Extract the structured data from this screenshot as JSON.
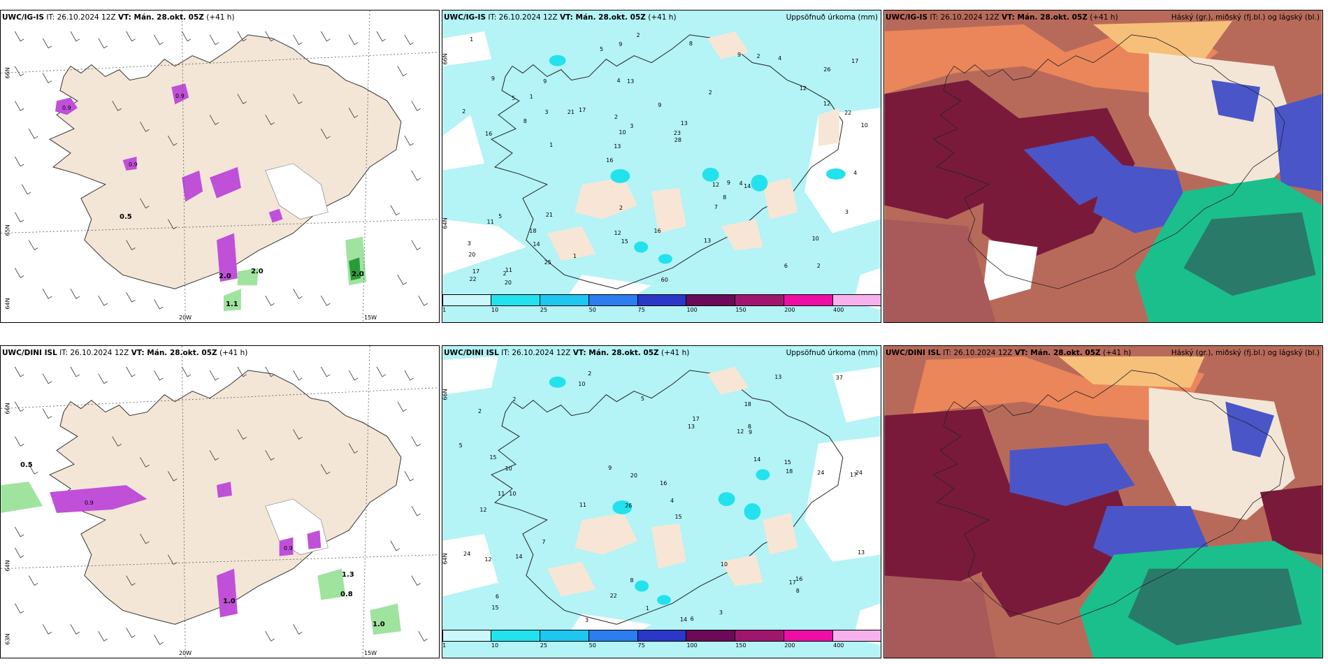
{
  "panels": [
    {
      "id": "tl",
      "model": "UWC/IG-IS",
      "it_text": "IT: 26.10.2024 12Z",
      "vt_text": "VT: Mán. 28.okt. 05Z",
      "lead": "(+41 h)",
      "right_title": "",
      "lon_labels": [
        "20W",
        "15W"
      ],
      "lat_labels": [
        "66N",
        "65N",
        "64N"
      ],
      "annotations": [
        "0.5",
        "1.1",
        "2.0",
        "2.0",
        "2.0",
        "0.9",
        "0.9",
        "0.9"
      ]
    },
    {
      "id": "tm",
      "model": "UWC/IG-IS",
      "it_text": "IT: 26.10.2024 12Z",
      "vt_text": "VT: Mán. 28.okt. 05Z",
      "lead": "(+41 h)",
      "right_title": "Uppsöfnuð úrkoma (mm)",
      "lat_labels": [
        "66N",
        "64N"
      ],
      "numbers": [
        "2",
        "16",
        "26",
        "16",
        "2",
        "11",
        "4",
        "9",
        "5",
        "17",
        "20",
        "14",
        "13",
        "13",
        "14",
        "9",
        "9",
        "10",
        "12",
        "12",
        "13",
        "12",
        "10",
        "9",
        "9",
        "21",
        "6",
        "10",
        "4",
        "60",
        "21",
        "8",
        "7",
        "25",
        "22",
        "23",
        "17",
        "15",
        "28",
        "11",
        "12",
        "17",
        "8",
        "13",
        "18",
        "20",
        "22",
        "16",
        "4",
        "2",
        "1",
        "2",
        "1",
        "2",
        "2",
        "8",
        "5",
        "3",
        "3",
        "2",
        "1",
        "9",
        "3",
        "3",
        "1",
        "5",
        "4",
        "2"
      ]
    },
    {
      "id": "tr",
      "model": "UWC/IG-IS",
      "it_text": "IT: 26.10.2024 12Z",
      "vt_text": "VT: Mán. 28.okt. 05Z",
      "lead": "(+41 h)",
      "right_title": "Háský (gr.), miðský (fj.bl.) og lágský (bl.)"
    },
    {
      "id": "bl",
      "model": "UWC/DINI ISL",
      "it_text": "IT: 26.10.2024 12Z",
      "vt_text": "VT: Mán. 28.okt. 05Z",
      "lead": "(+41 h)",
      "right_title": "",
      "lon_labels": [
        "20W",
        "15W"
      ],
      "lat_labels": [
        "66N",
        "64N",
        "63N"
      ],
      "annotations": [
        "0.5",
        "1.3",
        "0.8",
        "1.0",
        "1.0",
        "0.9",
        "0.9"
      ]
    },
    {
      "id": "bm",
      "model": "UWC/DINI ISL",
      "it_text": "IT: 26.10.2024 12Z",
      "vt_text": "VT: Mán. 28.okt. 05Z",
      "lead": "(+41 h)",
      "right_title": "Uppsöfnuð úrkoma (mm)",
      "lat_labels": [
        "66N",
        "64N"
      ],
      "numbers": [
        "2",
        "18",
        "17",
        "26",
        "15",
        "10",
        "2",
        "12",
        "12",
        "13",
        "16",
        "15",
        "10",
        "11",
        "14",
        "6",
        "8",
        "13",
        "14",
        "7",
        "10",
        "11",
        "24",
        "24",
        "24",
        "15",
        "20",
        "18",
        "16",
        "12",
        "17",
        "17",
        "14",
        "9",
        "10",
        "13",
        "15",
        "22",
        "37",
        "5",
        "6",
        "3",
        "3",
        "2",
        "1",
        "9",
        "8",
        "8",
        "5",
        "4"
      ]
    },
    {
      "id": "br",
      "model": "UWC/DINI ISL",
      "it_text": "IT: 26.10.2024 12Z",
      "vt_text": "VT: Mán. 28.okt. 05Z",
      "lead": "(+41 h)",
      "right_title": "Háský (gr.), miðský (fj.bl.) og lágský (bl.)"
    }
  ],
  "colorbar": {
    "ticks": [
      "1",
      "10",
      "25",
      "50",
      "75",
      "100",
      "150",
      "200",
      "400"
    ],
    "colors": [
      "#ccf8fb",
      "#22e2ee",
      "#1ec6f0",
      "#2c7df0",
      "#2a37c8",
      "#6a0a58",
      "#a0166e",
      "#ee0ea5",
      "#f7b2ee"
    ]
  },
  "colors": {
    "land": "#f3e6d7",
    "sea_precip": "#b4f3f6",
    "rain_green": "#9fe39f",
    "snow_purple": "#c050d8",
    "cloud_dark": "#7a1a3a",
    "cloud_blue": "#4a55c8",
    "cloud_green": "#1bbf8c",
    "cloud_orange": "#f08a5a"
  }
}
